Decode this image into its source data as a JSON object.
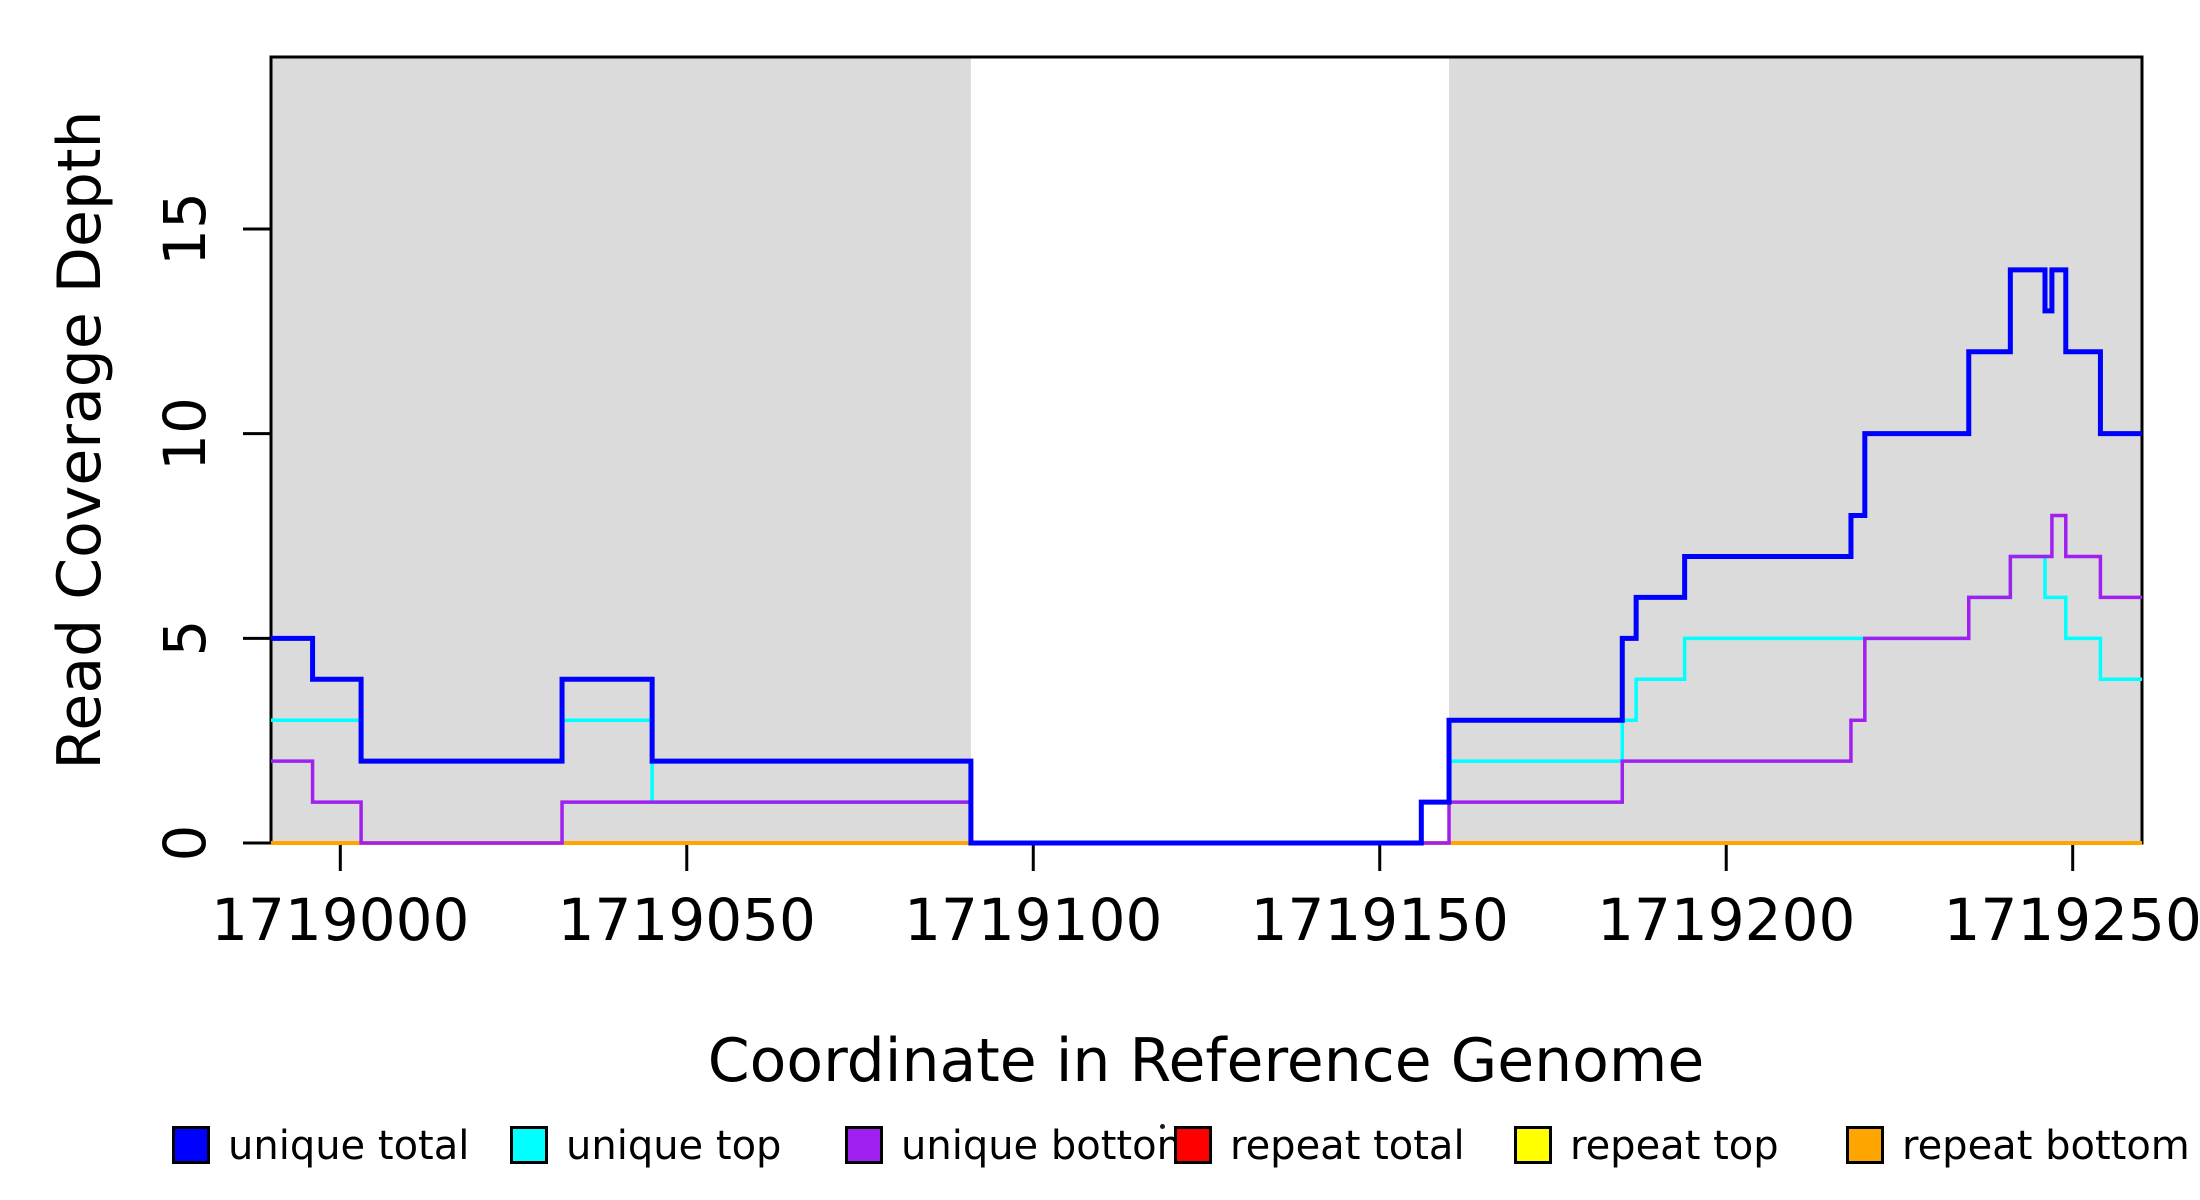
{
  "chart_data": {
    "type": "line",
    "subtype": "step",
    "title": "",
    "xlabel": "Coordinate in Reference Genome",
    "ylabel": "Read Coverage Depth",
    "xlim": [
      1718990,
      1719260
    ],
    "ylim": [
      0,
      19.2
    ],
    "xticks": [
      1719000,
      1719050,
      1719100,
      1719150,
      1719200,
      1719250
    ],
    "yticks": [
      0,
      5,
      10,
      15
    ],
    "grid": false,
    "legend_position": "bottom",
    "plot_background": "#ffffff",
    "shaded_regions": [
      {
        "name": "unique-region-left",
        "x0": 1718990,
        "x1": 1719091,
        "color": "#DBDBDB"
      },
      {
        "name": "unique-region-right",
        "x0": 1719160,
        "x1": 1719260,
        "color": "#DBDBDB"
      }
    ],
    "series": [
      {
        "name": "repeat total",
        "color": "#FF0000",
        "width": 3.5,
        "points": [
          [
            1718990,
            0
          ]
        ]
      },
      {
        "name": "repeat top",
        "color": "#FFFF00",
        "width": 3.5,
        "points": [
          [
            1718990,
            0
          ]
        ]
      },
      {
        "name": "repeat bottom",
        "color": "#FFA500",
        "width": 4,
        "points": [
          [
            1718990,
            0
          ]
        ]
      },
      {
        "name": "unique top",
        "color": "#00FFFF",
        "width": 3.5,
        "points": [
          [
            1718990,
            3
          ],
          [
            1719003,
            2
          ],
          [
            1719032,
            3
          ],
          [
            1719045,
            1
          ],
          [
            1719091,
            0
          ],
          [
            1719156,
            1
          ],
          [
            1719160,
            2
          ],
          [
            1719185,
            3
          ],
          [
            1719187,
            4
          ],
          [
            1719194,
            5
          ],
          [
            1719235,
            6
          ],
          [
            1719241,
            7
          ],
          [
            1719246,
            6
          ],
          [
            1719249,
            5
          ],
          [
            1719254,
            4
          ]
        ]
      },
      {
        "name": "unique bottom",
        "color": "#A020F0",
        "width": 3.5,
        "points": [
          [
            1718990,
            2
          ],
          [
            1718996,
            1
          ],
          [
            1719003,
            0
          ],
          [
            1719032,
            1
          ],
          [
            1719091,
            0
          ],
          [
            1719160,
            1
          ],
          [
            1719185,
            2
          ],
          [
            1719218,
            3
          ],
          [
            1719220,
            5
          ],
          [
            1719235,
            6
          ],
          [
            1719241,
            7
          ],
          [
            1719247,
            8
          ],
          [
            1719249,
            7
          ],
          [
            1719254,
            6
          ]
        ]
      },
      {
        "name": "unique total",
        "color": "#0000FF",
        "width": 5,
        "points": [
          [
            1718990,
            5
          ],
          [
            1718996,
            4
          ],
          [
            1719003,
            2
          ],
          [
            1719032,
            4
          ],
          [
            1719045,
            2
          ],
          [
            1719091,
            0
          ],
          [
            1719156,
            1
          ],
          [
            1719160,
            3
          ],
          [
            1719185,
            5
          ],
          [
            1719187,
            6
          ],
          [
            1719194,
            7
          ],
          [
            1719218,
            8
          ],
          [
            1719220,
            10
          ],
          [
            1719235,
            12
          ],
          [
            1719241,
            14
          ],
          [
            1719246,
            13
          ],
          [
            1719247,
            14
          ],
          [
            1719249,
            12
          ],
          [
            1719254,
            10
          ]
        ]
      }
    ]
  },
  "axes": {
    "x_title": "Coordinate in Reference Genome",
    "y_title": "Read Coverage Depth"
  },
  "legend": {
    "items": [
      {
        "label": "unique total",
        "color": "#0000FF"
      },
      {
        "label": "unique top",
        "color": "#00FFFF"
      },
      {
        "label": "unique bottom",
        "color": "#A020F0"
      },
      {
        "label": "repeat total",
        "color": "#FF0000"
      },
      {
        "label": "repeat top",
        "color": "#FFFF00"
      },
      {
        "label": "repeat bottom",
        "color": "#FFA500"
      }
    ]
  },
  "colors": {
    "shaded_region": "#DBDBDB",
    "axis": "#000000",
    "background": "#ffffff"
  }
}
